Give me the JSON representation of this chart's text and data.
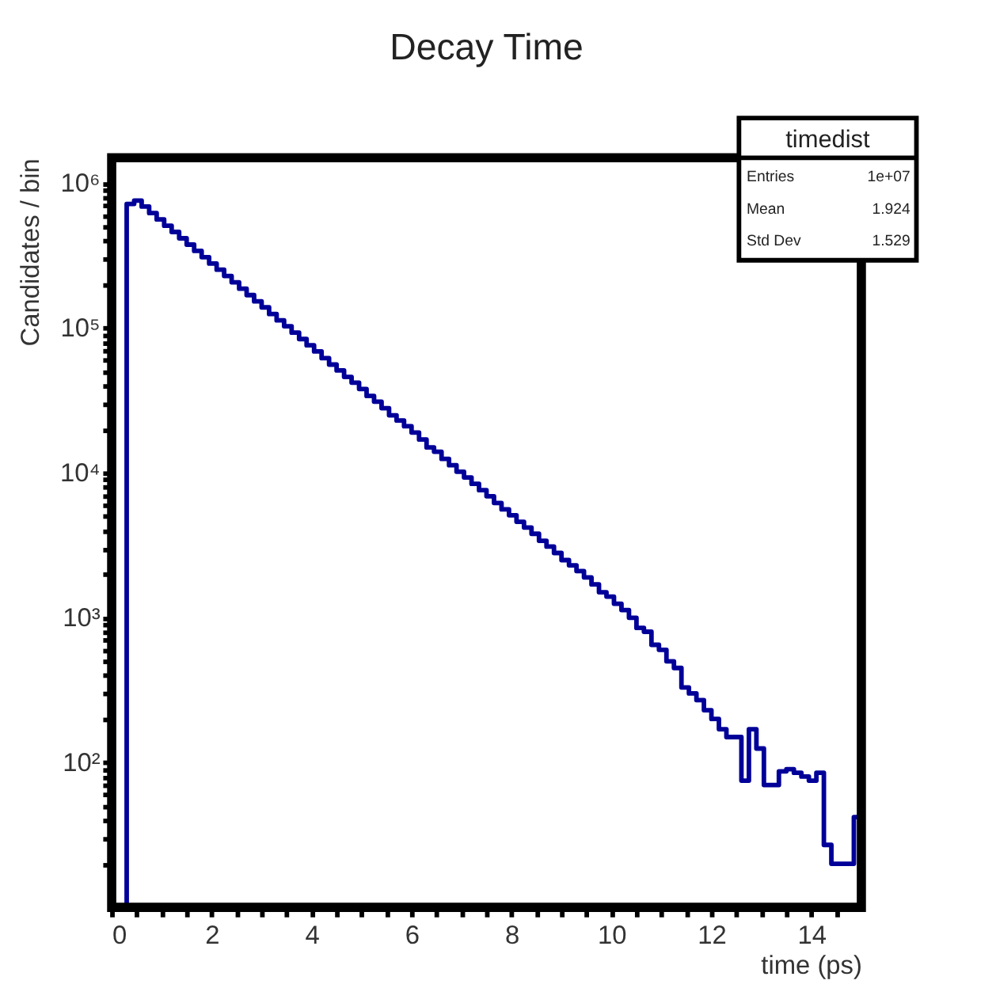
{
  "chart_data": {
    "type": "histogram",
    "title": "Decay Time",
    "xlabel": "time (ps)",
    "ylabel": "Candidates / bin",
    "bins": [
      0.3,
      0.45,
      0.6,
      0.75,
      0.9,
      1.05,
      1.2,
      1.35,
      1.5,
      1.65,
      1.8,
      1.95,
      2.1,
      2.25,
      2.4,
      2.55,
      2.7,
      2.85,
      3.0,
      3.15,
      3.3,
      3.45,
      3.6,
      3.75,
      3.9,
      4.05,
      4.2,
      4.35,
      4.5,
      4.65,
      4.8,
      4.95,
      5.1,
      5.25,
      5.4,
      5.55,
      5.7,
      5.85,
      6.0,
      6.15,
      6.3,
      6.45,
      6.6,
      6.75,
      6.9,
      7.05,
      7.2,
      7.35,
      7.5,
      7.65,
      7.8,
      7.95,
      8.1,
      8.25,
      8.4,
      8.55,
      8.7,
      8.85,
      9.0,
      9.15,
      9.3,
      9.45,
      9.6,
      9.75,
      9.9,
      10.05,
      10.2,
      10.35,
      10.5,
      10.65,
      10.8,
      10.95,
      11.1,
      11.25,
      11.4,
      11.55,
      11.7,
      11.85,
      12.0,
      12.15,
      12.3,
      12.45,
      12.6,
      12.75,
      12.9,
      13.05,
      13.2,
      13.35,
      13.5,
      13.65,
      13.8,
      13.95,
      14.1,
      14.25,
      14.4,
      14.55,
      14.7,
      14.85,
      15.0
    ],
    "values": [
      720000,
      760000,
      690000,
      622000,
      563000,
      509000,
      461000,
      417000,
      377000,
      341000,
      309000,
      279000,
      253000,
      229000,
      207000,
      187000,
      169000,
      153000,
      139000,
      125000,
      113000,
      103000,
      93000,
      84000,
      76000,
      69000,
      62000,
      56000,
      51000,
      46000,
      42000,
      38000,
      34000,
      31000,
      28000,
      25000,
      23000,
      21000,
      19000,
      17000,
      15000,
      14000,
      12500,
      11300,
      10200,
      9300,
      8400,
      7600,
      6900,
      6200,
      5600,
      5100,
      4600,
      4200,
      3800,
      3400,
      3100,
      2800,
      2500,
      2300,
      2100,
      1900,
      1700,
      1500,
      1400,
      1250,
      1130,
      1000,
      850,
      800,
      650,
      600,
      500,
      450,
      330,
      300,
      270,
      230,
      200,
      170,
      150,
      150,
      75,
      170,
      125,
      70,
      70,
      87,
      90,
      85,
      80,
      75,
      85,
      27,
      20,
      20,
      20,
      42
    ],
    "color": "#000099",
    "xlim": [
      0,
      15
    ],
    "xticks": [
      0,
      {
        "value": 0.5,
        "label": null
      },
      {
        "value": 1,
        "label": null
      },
      {
        "value": 1.5,
        "label": null
      },
      2,
      {
        "value": 2.5,
        "label": null
      },
      {
        "value": 3,
        "label": null
      },
      {
        "value": 3.5,
        "label": null
      },
      4,
      {
        "value": 4.5,
        "label": null
      },
      {
        "value": 5,
        "label": null
      },
      {
        "value": 5.5,
        "label": null
      },
      6,
      {
        "value": 6.5,
        "label": null
      },
      {
        "value": 7,
        "label": null
      },
      {
        "value": 7.5,
        "label": null
      },
      8,
      {
        "value": 8.5,
        "label": null
      },
      {
        "value": 9,
        "label": null
      },
      {
        "value": 9.5,
        "label": null
      },
      10,
      {
        "value": 10.5,
        "label": null
      },
      {
        "value": 11,
        "label": null
      },
      {
        "value": 11.5,
        "label": null
      },
      12,
      {
        "value": 12.5,
        "label": null
      },
      {
        "value": 13,
        "label": null
      },
      {
        "value": 13.5,
        "label": null
      },
      14,
      {
        "value": 14.5,
        "label": null
      }
    ],
    "ylim": [
      10,
      1500000
    ],
    "yticks": [
      {
        "value": 20,
        "label": null
      },
      {
        "value": 30,
        "label": null
      },
      {
        "value": 40,
        "label": null
      },
      {
        "value": 50,
        "label": null
      },
      {
        "value": 60,
        "label": null
      },
      {
        "value": 70,
        "label": null
      },
      {
        "value": 80,
        "label": null
      },
      {
        "value": 90,
        "label": null
      },
      {
        "value": 100,
        "label": "10²"
      },
      {
        "value": 200,
        "label": null
      },
      {
        "value": 300,
        "label": null
      },
      {
        "value": 400,
        "label": null
      },
      {
        "value": 500,
        "label": null
      },
      {
        "value": 600,
        "label": null
      },
      {
        "value": 700,
        "label": null
      },
      {
        "value": 800,
        "label": null
      },
      {
        "value": 900,
        "label": null
      },
      {
        "value": 1000,
        "label": "10³"
      },
      {
        "value": 2000,
        "label": null
      },
      {
        "value": 3000,
        "label": null
      },
      {
        "value": 4000,
        "label": null
      },
      {
        "value": 5000,
        "label": null
      },
      {
        "value": 6000,
        "label": null
      },
      {
        "value": 7000,
        "label": null
      },
      {
        "value": 8000,
        "label": null
      },
      {
        "value": 9000,
        "label": null
      },
      {
        "value": 10000,
        "label": "10⁴"
      },
      {
        "value": 20000,
        "label": null
      },
      {
        "value": 30000,
        "label": null
      },
      {
        "value": 40000,
        "label": null
      },
      {
        "value": 50000,
        "label": null
      },
      {
        "value": 60000,
        "label": null
      },
      {
        "value": 70000,
        "label": null
      },
      {
        "value": 80000,
        "label": null
      },
      {
        "value": 90000,
        "label": null
      },
      {
        "value": 100000,
        "label": "10⁵"
      },
      {
        "value": 200000,
        "label": null
      },
      {
        "value": 300000,
        "label": null
      },
      {
        "value": 400000,
        "label": null
      },
      {
        "value": 500000,
        "label": null
      },
      {
        "value": 600000,
        "label": null
      },
      {
        "value": 700000,
        "label": null
      },
      {
        "value": 800000,
        "label": null
      },
      {
        "value": 900000,
        "label": null
      },
      {
        "value": 1000000,
        "label": "10⁶"
      }
    ],
    "log": "y",
    "grid": false,
    "annotations": [
      "timedist",
      "Entries",
      "1e+07",
      "Mean",
      "1.924",
      "Std Dev",
      "1.529"
    ]
  }
}
